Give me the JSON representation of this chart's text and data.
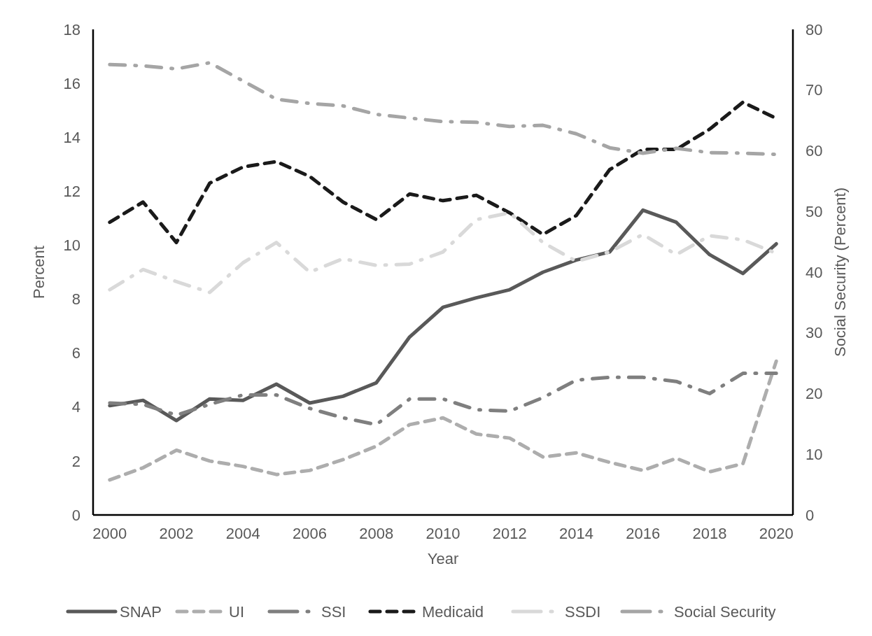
{
  "chart_data": {
    "type": "line",
    "xlabel": "Year",
    "ylabel": "Percent",
    "y2label": "Social Security (Percent)",
    "x": [
      2000,
      2001,
      2002,
      2003,
      2004,
      2005,
      2006,
      2007,
      2008,
      2009,
      2010,
      2011,
      2012,
      2013,
      2014,
      2015,
      2016,
      2017,
      2018,
      2019,
      2020
    ],
    "xlim": [
      1999.5,
      2020.5
    ],
    "xticks": [
      2000,
      2002,
      2004,
      2006,
      2008,
      2010,
      2012,
      2014,
      2016,
      2018,
      2020
    ],
    "ylim": [
      0,
      18
    ],
    "yticks": [
      0,
      2,
      4,
      6,
      8,
      10,
      12,
      14,
      16,
      18
    ],
    "y2lim": [
      0,
      80
    ],
    "y2ticks": [
      0,
      10,
      20,
      30,
      40,
      50,
      60,
      70,
      80
    ],
    "grid": false,
    "legend": "bottom",
    "series": [
      {
        "name": "SNAP",
        "color": "#595959",
        "line_style": "solid",
        "values": [
          4.05,
          4.25,
          3.5,
          4.3,
          4.25,
          4.85,
          4.15,
          4.4,
          4.9,
          6.6,
          7.7,
          8.05,
          8.35,
          9.0,
          9.45,
          9.75,
          11.3,
          10.85,
          9.65,
          8.95,
          10.05
        ]
      },
      {
        "name": "UI",
        "color": "#adadad",
        "line_style": "dashed",
        "values": [
          1.3,
          1.75,
          2.4,
          2.0,
          1.8,
          1.5,
          1.65,
          2.05,
          2.55,
          3.35,
          3.6,
          3.0,
          2.85,
          2.15,
          2.3,
          1.95,
          1.65,
          2.1,
          1.6,
          1.9,
          5.7
        ]
      },
      {
        "name": "SSI",
        "color": "#7f7f7f",
        "line_style": "dashdot",
        "values": [
          4.15,
          4.1,
          3.7,
          4.1,
          4.45,
          4.45,
          3.95,
          3.6,
          3.35,
          4.3,
          4.3,
          3.9,
          3.85,
          4.35,
          5.0,
          5.1,
          5.1,
          4.95,
          4.5,
          5.25,
          5.25
        ]
      },
      {
        "name": "Medicaid",
        "color": "#1a1a1a",
        "line_style": "dashed",
        "values": [
          10.85,
          11.6,
          10.1,
          12.3,
          12.9,
          13.1,
          12.55,
          11.6,
          10.95,
          11.9,
          11.65,
          11.85,
          11.2,
          10.4,
          11.1,
          12.8,
          13.55,
          13.55,
          14.3,
          15.3,
          14.7
        ]
      },
      {
        "name": "SSDI",
        "color": "#d9d9d9",
        "line_style": "dashdot",
        "values": [
          8.35,
          9.1,
          8.65,
          8.25,
          9.35,
          10.1,
          9.0,
          9.5,
          9.25,
          9.3,
          9.75,
          10.95,
          11.2,
          10.1,
          9.4,
          9.75,
          10.4,
          9.65,
          10.35,
          10.2,
          9.7
        ]
      },
      {
        "name": "Social Security",
        "color": "#a5a5a5",
        "line_style": "dashdot",
        "axis": "y2",
        "values": [
          74.2,
          74.0,
          73.5,
          74.5,
          71.5,
          68.5,
          67.8,
          67.4,
          66.0,
          65.4,
          64.8,
          64.7,
          64.0,
          64.2,
          62.8,
          60.5,
          59.6,
          60.4,
          59.7,
          59.6,
          59.4
        ]
      }
    ]
  }
}
